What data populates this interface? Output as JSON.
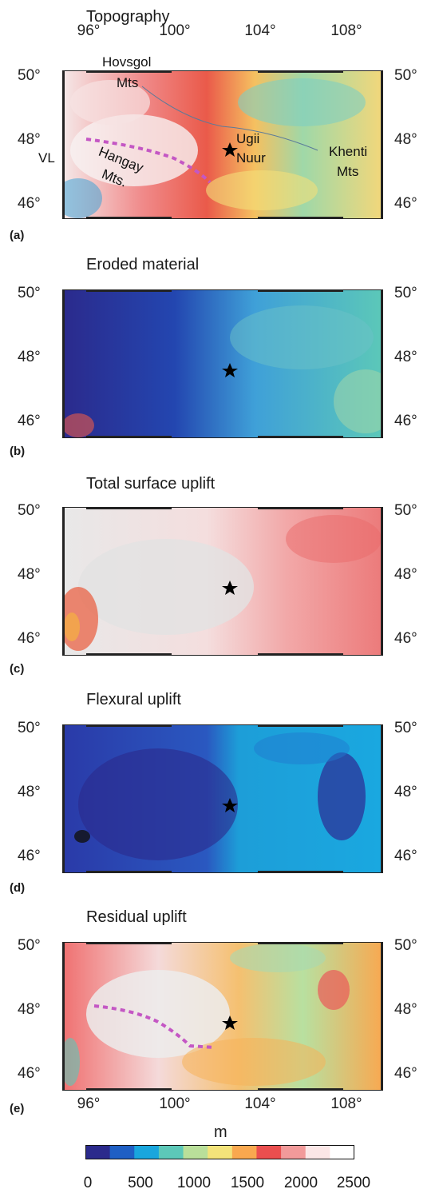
{
  "panels": [
    {
      "id": "a",
      "title": "Topography",
      "label": "(a)"
    },
    {
      "id": "b",
      "title": "Eroded material",
      "label": "(b)"
    },
    {
      "id": "c",
      "title": "Total surface uplift",
      "label": "(c)"
    },
    {
      "id": "d",
      "title": "Flexural uplift",
      "label": "(d)"
    },
    {
      "id": "e",
      "title": "Residual uplift",
      "label": "(e)"
    }
  ],
  "axes": {
    "lat_ticks": [
      "50°",
      "48°",
      "46°"
    ],
    "lon_ticks": [
      "96°",
      "100°",
      "104°",
      "108°"
    ]
  },
  "annotations": {
    "hovsgol": "Hovsgol",
    "mts1": "Mts",
    "vl": "VL",
    "hangay": "Hangay",
    "mts2": "Mts.",
    "ugii": "Ugii",
    "nuur": "Nuur",
    "khenti": "Khenti",
    "mts3": "Mts"
  },
  "colorbar": {
    "unit": "m",
    "ticks": [
      "0",
      "500",
      "1000",
      "1500",
      "2000",
      "2500"
    ],
    "colors": [
      "#2b2a8c",
      "#1f5fc4",
      "#19a6dd",
      "#5cc8b8",
      "#b9df9a",
      "#f3e37a",
      "#f9a84f",
      "#ea4f4f",
      "#f29a9a",
      "#fbe6e6",
      "#ffffff"
    ]
  },
  "palette": {
    "star": "#000000",
    "dashed_line": "#c457c4",
    "frame": "#222222"
  }
}
